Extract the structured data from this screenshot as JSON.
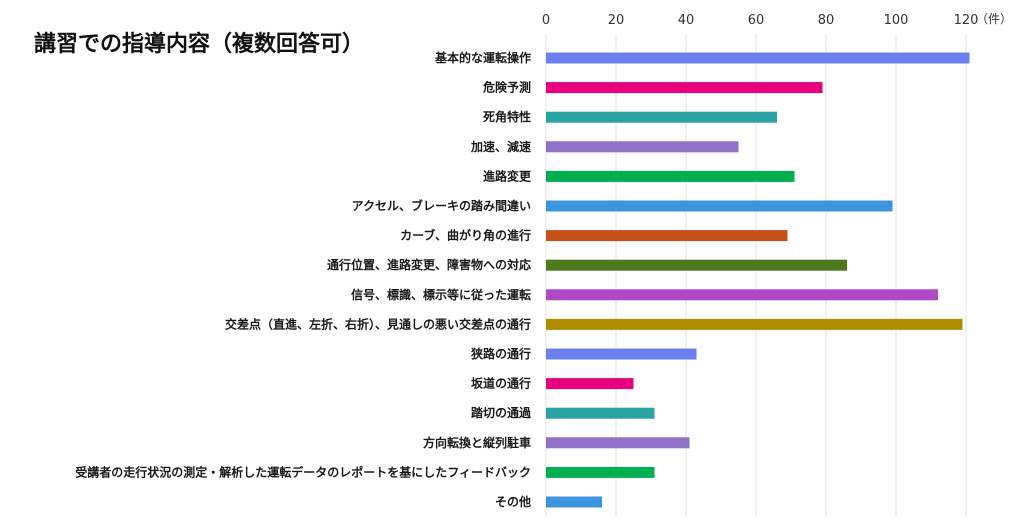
{
  "chart_data": {
    "type": "bar",
    "orientation": "horizontal",
    "title": "講習での指導内容（複数回答可）",
    "unit": "（件）",
    "xlim": [
      0,
      120
    ],
    "xticks": [
      0,
      20,
      40,
      60,
      80,
      100,
      120
    ],
    "grid": true,
    "categories": [
      "基本的な運転操作",
      "危険予測",
      "死角特性",
      "加速、減速",
      "進路変更",
      "アクセル、ブレーキの踏み間違い",
      "カーブ、曲がり角の進行",
      "通行位置、進路変更、障害物への対応",
      "信号、標識、標示等に従った運転",
      "交差点（直進、左折、右折）、見通しの悪い交差点の通行",
      "狭路の通行",
      "坂道の通行",
      "踏切の通過",
      "方向転換と縦列駐車",
      "受講者の走行状況の測定・解析した運転データのレポートを基にしたフィードバック",
      "その他"
    ],
    "values": [
      121,
      79,
      66,
      55,
      71,
      99,
      69,
      86,
      112,
      119,
      43,
      25,
      31,
      41,
      31,
      16
    ],
    "colors": [
      "#6b7ff0",
      "#e6007e",
      "#2aa3a3",
      "#9070c8",
      "#00b050",
      "#3a95de",
      "#c4501a",
      "#4e7a1e",
      "#b048c8",
      "#b08c00",
      "#6b7ff0",
      "#e6007e",
      "#2aa3a3",
      "#9070c8",
      "#00b050",
      "#3a95de"
    ]
  }
}
